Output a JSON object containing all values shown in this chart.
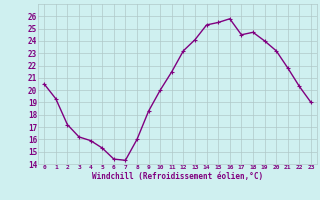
{
  "x": [
    0,
    1,
    2,
    3,
    4,
    5,
    6,
    7,
    8,
    9,
    10,
    11,
    12,
    13,
    14,
    15,
    16,
    17,
    18,
    19,
    20,
    21,
    22,
    23
  ],
  "y": [
    20.5,
    19.3,
    17.2,
    16.2,
    15.9,
    15.3,
    14.4,
    14.3,
    16.0,
    18.3,
    20.0,
    21.5,
    23.2,
    24.1,
    25.3,
    25.5,
    25.8,
    24.5,
    24.7,
    24.0,
    23.2,
    21.8,
    20.3,
    19.0
  ],
  "line_color": "#800080",
  "marker": "+",
  "marker_size": 3,
  "xlabel": "Windchill (Refroidissement éolien,°C)",
  "ylim": [
    14,
    27
  ],
  "xlim": [
    -0.5,
    23.5
  ],
  "yticks": [
    14,
    15,
    16,
    17,
    18,
    19,
    20,
    21,
    22,
    23,
    24,
    25,
    26
  ],
  "xticks": [
    0,
    1,
    2,
    3,
    4,
    5,
    6,
    7,
    8,
    9,
    10,
    11,
    12,
    13,
    14,
    15,
    16,
    17,
    18,
    19,
    20,
    21,
    22,
    23
  ],
  "xtick_labels": [
    "0",
    "1",
    "2",
    "3",
    "4",
    "5",
    "6",
    "7",
    "8",
    "9",
    "10",
    "11",
    "12",
    "13",
    "14",
    "15",
    "16",
    "17",
    "18",
    "19",
    "20",
    "21",
    "22",
    "23"
  ],
  "bg_color": "#cff0f0",
  "grid_color": "#b0c8c8",
  "tick_color": "#800080",
  "label_color": "#800080",
  "line_width": 1.0
}
